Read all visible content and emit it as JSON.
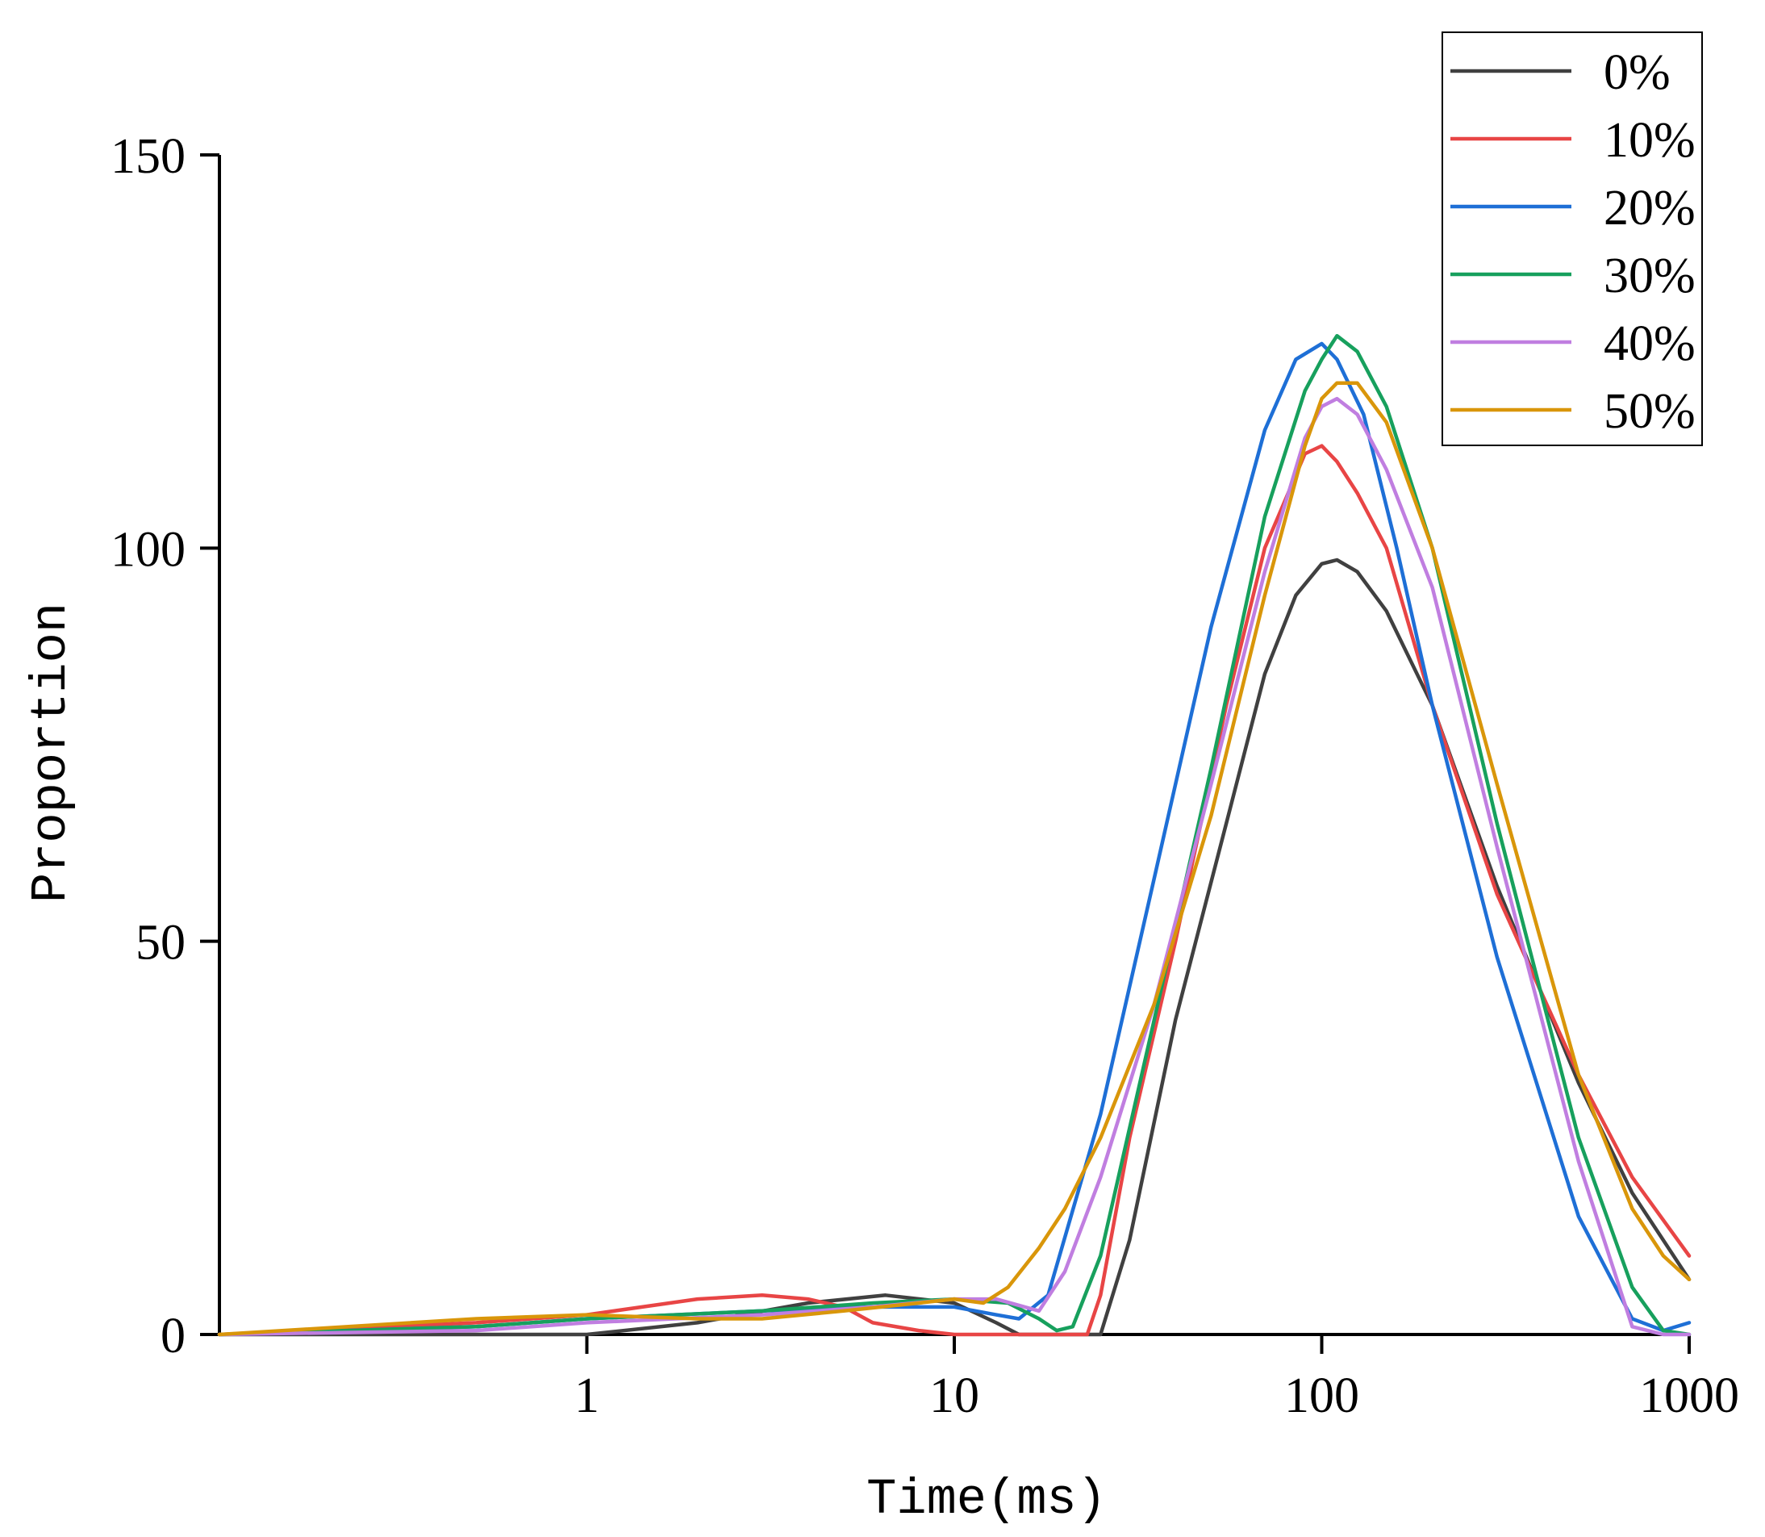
{
  "chart_data": {
    "type": "line",
    "title": "",
    "xlabel": "Time(ms)",
    "ylabel": "Proportion",
    "xscale": "log",
    "xlim": [
      0.1,
      1000
    ],
    "ylim": [
      0,
      150
    ],
    "xticks": [
      1,
      10,
      100,
      1000
    ],
    "xtick_labels": [
      "1",
      "10",
      "100",
      "1000"
    ],
    "yticks": [
      0,
      50,
      100,
      150
    ],
    "ytick_labels": [
      "0",
      "50",
      "100",
      "150"
    ],
    "grid": false,
    "legend_position": "top-right",
    "series": [
      {
        "name": "0%",
        "color": "#404040",
        "x": [
          0.1,
          0.5,
          1,
          2,
          4,
          6.5,
          10,
          13,
          15,
          25,
          30,
          40,
          55,
          70,
          85,
          100,
          110,
          125,
          150,
          200,
          300,
          500,
          700,
          1000
        ],
        "y": [
          0,
          0,
          0,
          1.5,
          4,
          5,
          4,
          1.5,
          0,
          0,
          12,
          40,
          65,
          84,
          94,
          98,
          98.5,
          97,
          92,
          80,
          57,
          32,
          18,
          7
        ]
      },
      {
        "name": "10%",
        "color": "#e84545",
        "x": [
          0.1,
          0.5,
          1,
          2,
          3,
          4,
          5,
          6,
          8,
          10,
          15,
          23,
          25,
          30,
          40,
          55,
          70,
          90,
          100,
          110,
          125,
          150,
          200,
          300,
          500,
          700,
          1000
        ],
        "y": [
          0,
          1.5,
          2.5,
          4.5,
          5,
          4.5,
          3.5,
          1.5,
          0.5,
          0,
          0,
          0,
          5,
          25,
          50,
          80,
          100,
          112,
          113,
          111,
          107,
          100,
          80,
          56,
          33,
          20,
          10
        ]
      },
      {
        "name": "20%",
        "color": "#1e6fd6",
        "x": [
          0.1,
          0.5,
          1,
          3,
          6,
          10,
          13,
          15,
          18,
          25,
          35,
          50,
          70,
          85,
          100,
          110,
          130,
          160,
          200,
          300,
          500,
          700,
          850,
          1000
        ],
        "y": [
          0,
          1,
          2,
          3,
          3.5,
          3.5,
          2.5,
          2,
          5,
          28,
          58,
          90,
          115,
          124,
          126,
          124,
          117,
          100,
          80,
          48,
          15,
          2,
          0.5,
          1.5
        ]
      },
      {
        "name": "30%",
        "color": "#17a05d",
        "x": [
          0.1,
          0.5,
          1,
          3,
          6,
          10,
          14,
          17,
          19,
          21,
          25,
          35,
          50,
          70,
          90,
          100,
          110,
          125,
          150,
          200,
          300,
          500,
          700,
          850,
          1000
        ],
        "y": [
          0,
          1,
          2,
          3,
          4,
          4.5,
          4,
          2,
          0.5,
          1,
          10,
          40,
          72,
          104,
          120,
          124,
          127,
          125,
          118,
          100,
          65,
          25,
          6,
          0.5,
          0
        ]
      },
      {
        "name": "40%",
        "color": "#c07ee0",
        "x": [
          0.1,
          0.5,
          1,
          3,
          6,
          10,
          13,
          17,
          20,
          25,
          35,
          50,
          70,
          90,
          100,
          110,
          125,
          150,
          200,
          300,
          500,
          700,
          850,
          1000
        ],
        "y": [
          0,
          0.5,
          1.5,
          2.5,
          3.5,
          4.5,
          4.5,
          3,
          8,
          20,
          42,
          70,
          97,
          114,
          118,
          119,
          117,
          110,
          95,
          62,
          22,
          1,
          0,
          0
        ]
      },
      {
        "name": "50%",
        "color": "#d9960a",
        "x": [
          0.1,
          0.5,
          1,
          2,
          3,
          5,
          8,
          10,
          12,
          14,
          17,
          20,
          25,
          35,
          50,
          70,
          90,
          100,
          110,
          125,
          150,
          200,
          300,
          500,
          700,
          850,
          1000
        ],
        "y": [
          0,
          2,
          2.5,
          2,
          2,
          3,
          4,
          4.5,
          4,
          6,
          11,
          16,
          25,
          42,
          66,
          94,
          113,
          119,
          121,
          121,
          116,
          100,
          70,
          33,
          16,
          10,
          7
        ]
      }
    ]
  }
}
